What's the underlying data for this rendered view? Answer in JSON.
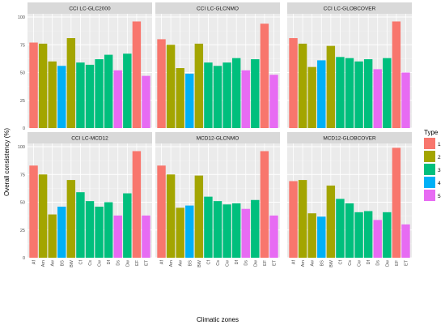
{
  "chart_data": {
    "type": "bar",
    "ylabel": "Overall consistency (%)",
    "xlabel": "Climatic zones",
    "ylim": [
      0,
      100
    ],
    "yticks": [
      0,
      25,
      50,
      75,
      100
    ],
    "grid": true,
    "categories": [
      "Af",
      "Am",
      "Aw",
      "BS",
      "BW",
      "Cf",
      "Cs",
      "Cw",
      "Df",
      "Ds",
      "Dw",
      "EF",
      "ET"
    ],
    "category_types": [
      "1",
      "2",
      "2",
      "4",
      "2",
      "3",
      "3",
      "3",
      "3",
      "5",
      "3",
      "1",
      "5"
    ],
    "legend": {
      "title": "Type",
      "position": "right",
      "entries": [
        {
          "label": "1",
          "color": "#F8766D"
        },
        {
          "label": "2",
          "color": "#A3A500"
        },
        {
          "label": "3",
          "color": "#00BF7D"
        },
        {
          "label": "4",
          "color": "#00B0F6"
        },
        {
          "label": "5",
          "color": "#E76BF3"
        }
      ]
    },
    "panels": [
      {
        "title": "CCI LC-GLC2000",
        "values": [
          77,
          76,
          60,
          56,
          81,
          59,
          57,
          62,
          66,
          52,
          67,
          96,
          47
        ]
      },
      {
        "title": "CCI LC-GLCNMO",
        "values": [
          80,
          75,
          54,
          49,
          76,
          59,
          56,
          59,
          63,
          52,
          62,
          94,
          48
        ]
      },
      {
        "title": "CCI LC-GLOBCOVER",
        "values": [
          81,
          76,
          55,
          61,
          74,
          64,
          63,
          60,
          62,
          53,
          63,
          96,
          50
        ]
      },
      {
        "title": "CCI LC-MCD12",
        "values": [
          83,
          75,
          39,
          46,
          70,
          59,
          51,
          46,
          50,
          38,
          58,
          96,
          38
        ]
      },
      {
        "title": "MCD12-GLCNMO",
        "values": [
          83,
          75,
          45,
          47,
          74,
          55,
          51,
          48,
          49,
          44,
          52,
          96,
          38
        ]
      },
      {
        "title": "MCD12-GLOBCOVER",
        "values": [
          69,
          70,
          40,
          37,
          65,
          53,
          49,
          41,
          42,
          34,
          41,
          99,
          30
        ]
      }
    ]
  }
}
